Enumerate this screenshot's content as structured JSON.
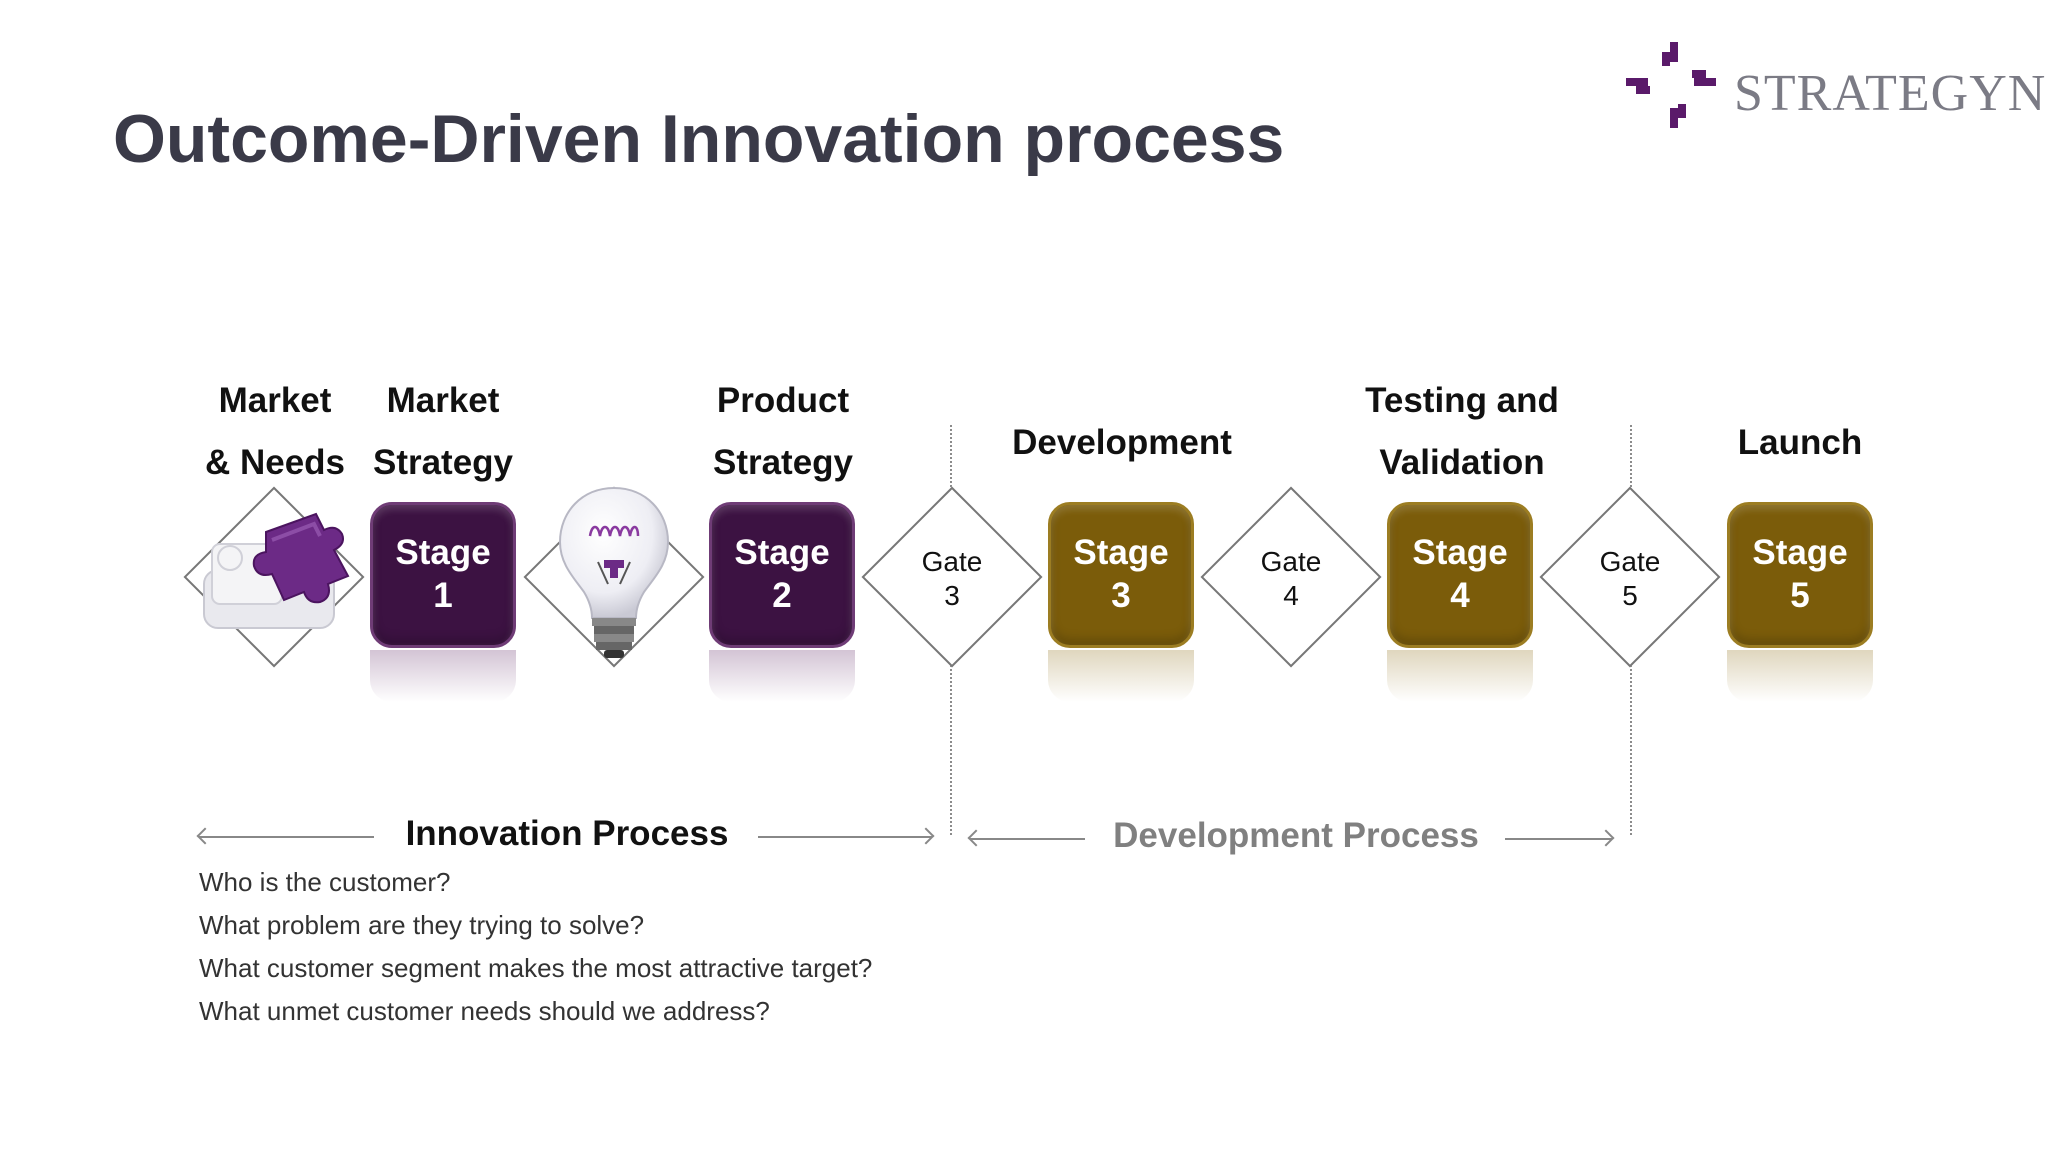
{
  "title": "Outcome-Driven Innovation process",
  "logo": {
    "text": "STRATEGYN",
    "accent": "#5a1a6a"
  },
  "headings": {
    "market_needs": [
      "Market",
      "& Needs"
    ],
    "market_strategy": [
      "Market",
      "Strategy"
    ],
    "product_strategy": [
      "Product",
      "Strategy"
    ],
    "development": "Development",
    "testing_validation": [
      "Testing and",
      "Validation"
    ],
    "launch": "Launch"
  },
  "stages": [
    {
      "label": "Stage",
      "number": "1"
    },
    {
      "label": "Stage",
      "number": "2"
    },
    {
      "label": "Stage",
      "number": "3"
    },
    {
      "label": "Stage",
      "number": "4"
    },
    {
      "label": "Stage",
      "number": "5"
    }
  ],
  "gates": [
    {
      "label": "Gate",
      "number": "3"
    },
    {
      "label": "Gate",
      "number": "4"
    },
    {
      "label": "Gate",
      "number": "5"
    }
  ],
  "icons": {
    "first": "puzzle-piece-icon",
    "second": "light-bulb-icon"
  },
  "processes": {
    "innovation": "Innovation Process",
    "development": "Development Process"
  },
  "questions": [
    "Who is the customer?",
    "What problem are they trying to solve?",
    "What customer segment makes the most attractive target?",
    "What unmet customer needs should we address?"
  ],
  "colors": {
    "stage_purple": "#3c1242",
    "stage_olive": "#7b5c0a",
    "title": "#3a3a48",
    "development_process": "#808080"
  }
}
